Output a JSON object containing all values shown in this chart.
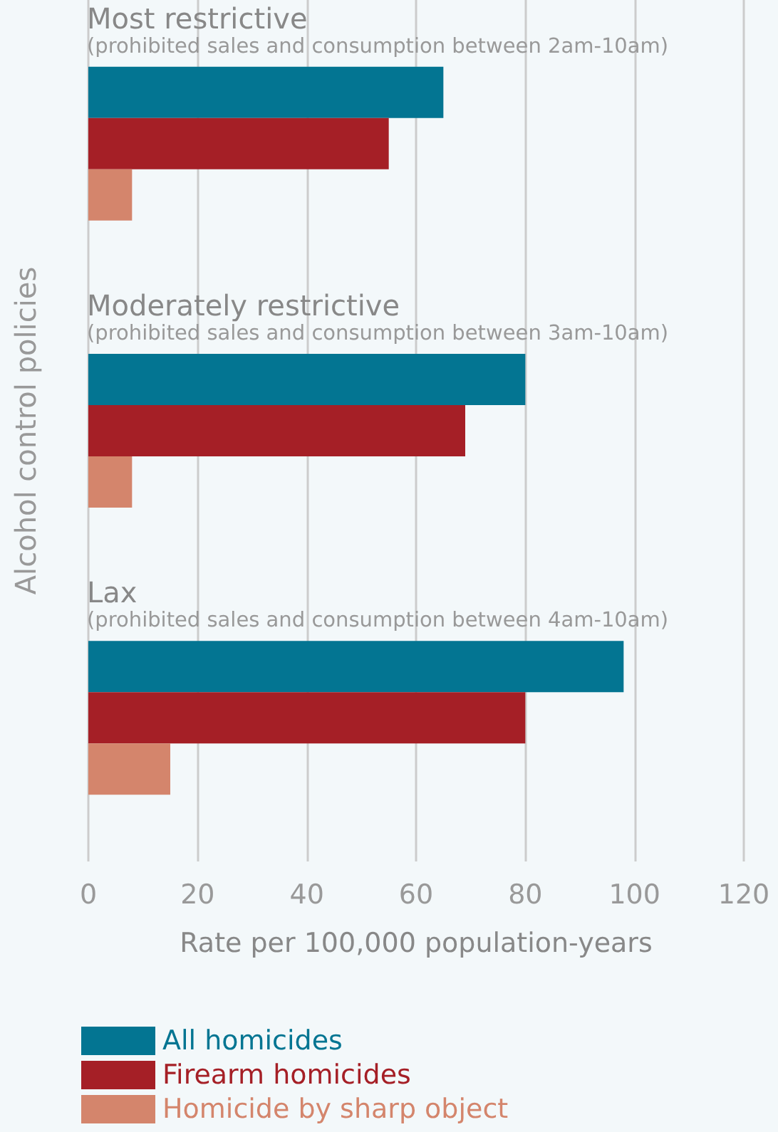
{
  "chart_data": {
    "type": "bar",
    "orientation": "horizontal",
    "xlabel": "Rate per 100,000 population-years",
    "ylabel": "Alcohol control policies",
    "categories": [
      "Most restrictive\n(prohibited sales and consumption between 2am-10am)",
      "Moderately restrictive\n(prohibited sales and consumption between 3am-10am)",
      "Lax\n(prohibited sales and consumption between 4am-10am)"
    ],
    "series": [
      {
        "name": "All homicides",
        "color": "#037592",
        "values": [
          65,
          80,
          98
        ]
      },
      {
        "name": "Firearm homicides",
        "color": "#a51f26",
        "values": [
          55,
          69,
          80
        ]
      },
      {
        "name": "Homicide by sharp object",
        "color": "#d4856c",
        "values": [
          8,
          8,
          15
        ]
      }
    ],
    "xlim": [
      0,
      120
    ],
    "xticks": [
      0,
      20,
      40,
      60,
      80,
      100,
      120
    ],
    "grid": "x",
    "legend": "bottom left"
  }
}
